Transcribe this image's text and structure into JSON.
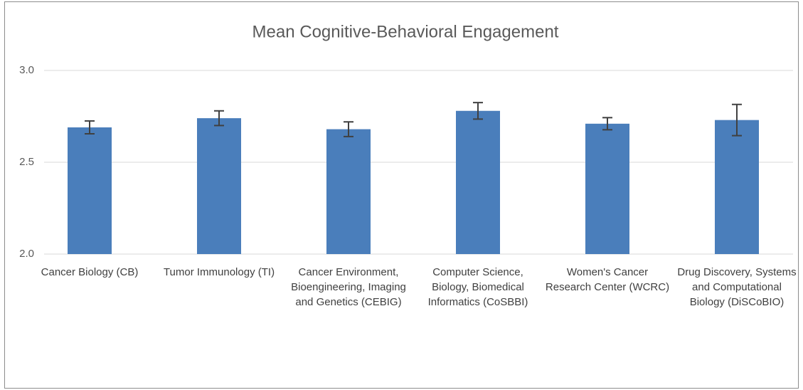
{
  "chart_data": {
    "type": "bar",
    "title": "Mean Cognitive-Behavioral  Engagement",
    "categories": [
      "Cancer Biology (CB)",
      "Tumor Immunology (TI)",
      "Cancer Environment, Bioengineering, Imaging and Genetics (CEBIG)",
      "Computer Science, Biology, Biomedical Informatics (CoSBBI)",
      "Women's Cancer Research Center (WCRC)",
      "Drug Discovery, Systems and Computational Biology (DiSCoBIO)"
    ],
    "values": [
      2.69,
      2.74,
      2.68,
      2.78,
      2.71,
      2.73
    ],
    "errors": [
      0.035,
      0.04,
      0.04,
      0.045,
      0.033,
      0.085
    ],
    "color": "#4a7ebb",
    "error_color": "#404040",
    "ylim": [
      2.0,
      3.0
    ],
    "yticks": [
      {
        "value": 2.0,
        "label": "2.0"
      },
      {
        "value": 2.5,
        "label": "2.5"
      },
      {
        "value": 3.0,
        "label": "3.0"
      }
    ],
    "grid": true
  }
}
